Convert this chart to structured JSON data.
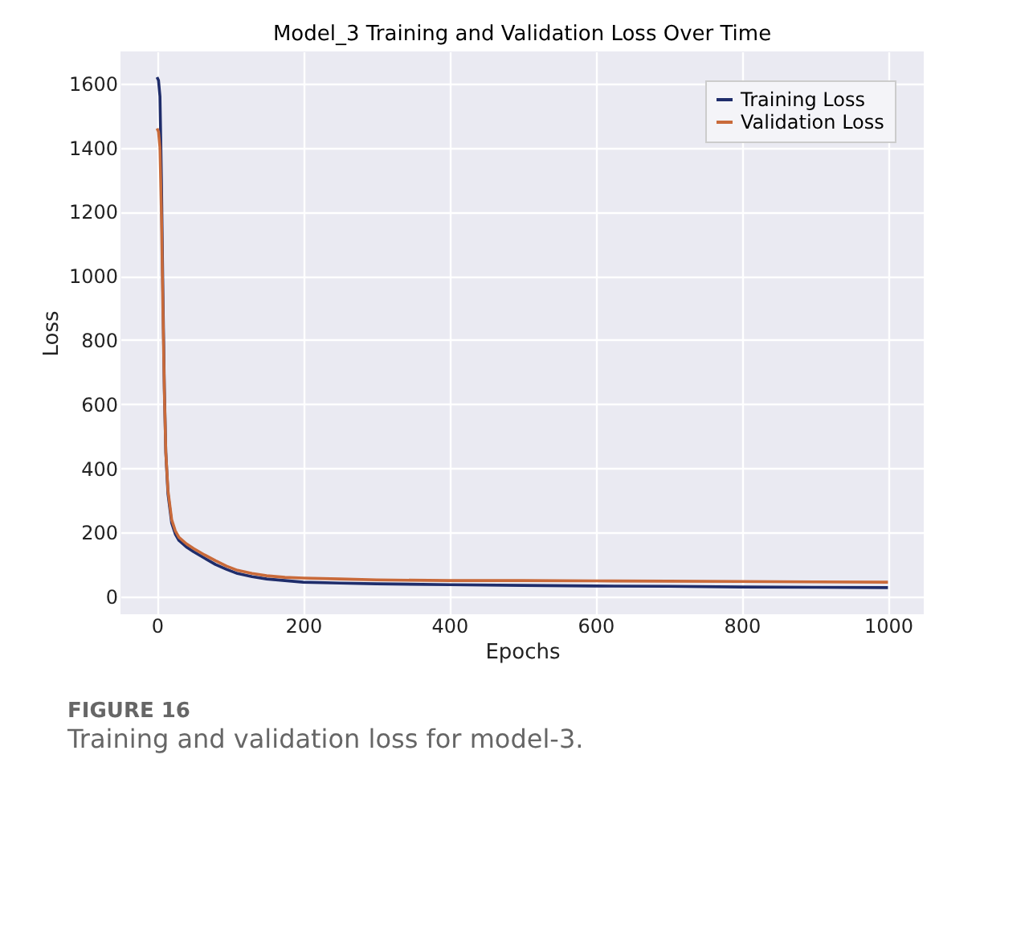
{
  "chart_data": {
    "type": "line",
    "title": "Model_3 Training and Validation Loss Over Time",
    "xlabel": "Epochs",
    "ylabel": "Loss",
    "xlim": [
      -50,
      1049
    ],
    "ylim": [
      -55,
      1700
    ],
    "xticks": [
      0,
      200,
      400,
      600,
      800,
      1000
    ],
    "yticks": [
      0,
      200,
      400,
      600,
      800,
      1000,
      1200,
      1400,
      1600
    ],
    "grid": true,
    "legend": "top right",
    "line_style": "solid",
    "marker": "none",
    "annotations": [
      "FIGURE 16",
      "Training and validation loss for model-3."
    ],
    "series": [
      {
        "name": "Training Loss",
        "color": "#1f2d6b",
        "x": [
          0,
          2,
          4,
          6,
          8,
          10,
          12,
          15,
          20,
          25,
          30,
          40,
          50,
          65,
          80,
          95,
          110,
          130,
          150,
          175,
          200,
          250,
          300,
          400,
          500,
          600,
          700,
          800,
          900,
          1000
        ],
        "values": [
          1620,
          1610,
          1560,
          1300,
          950,
          650,
          450,
          320,
          230,
          195,
          175,
          155,
          140,
          120,
          100,
          85,
          72,
          62,
          55,
          50,
          45,
          42,
          40,
          37,
          35,
          33,
          32,
          30,
          29,
          28
        ]
      },
      {
        "name": "Validation Loss",
        "color": "#c96a3a",
        "x": [
          0,
          2,
          4,
          6,
          8,
          10,
          12,
          15,
          20,
          25,
          30,
          40,
          50,
          65,
          80,
          95,
          110,
          130,
          150,
          175,
          200,
          250,
          300,
          400,
          500,
          600,
          700,
          800,
          900,
          1000
        ],
        "values": [
          1460,
          1450,
          1400,
          1200,
          900,
          640,
          450,
          330,
          240,
          205,
          185,
          165,
          150,
          130,
          112,
          95,
          82,
          72,
          65,
          60,
          58,
          55,
          52,
          50,
          50,
          49,
          48,
          47,
          46,
          45
        ]
      }
    ]
  }
}
